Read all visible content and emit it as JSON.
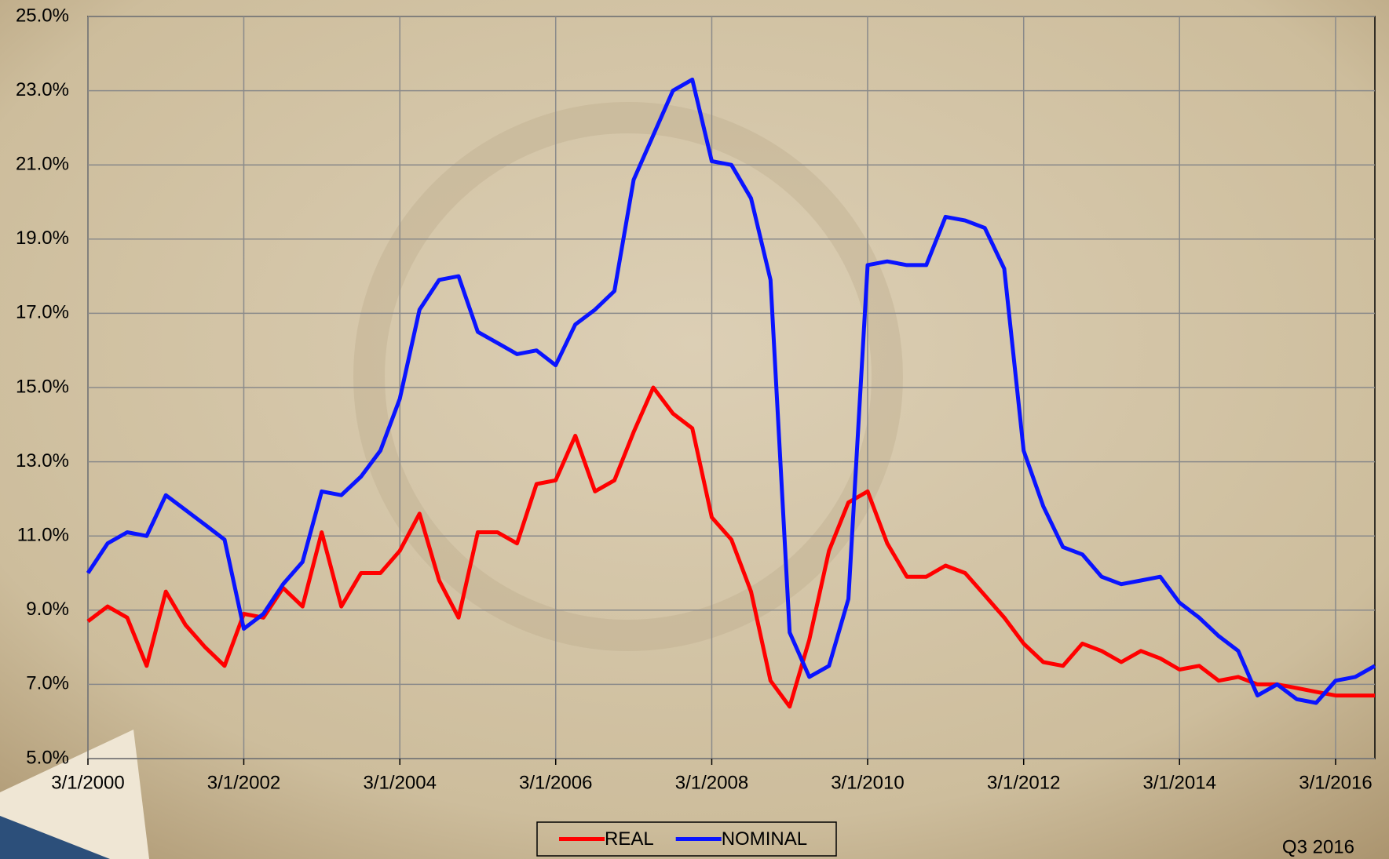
{
  "chart_data": {
    "type": "line",
    "x": [
      "3/1/2000",
      "6/1/2000",
      "9/1/2000",
      "12/1/2000",
      "3/1/2001",
      "6/1/2001",
      "9/1/2001",
      "12/1/2001",
      "3/1/2002",
      "6/1/2002",
      "9/1/2002",
      "12/1/2002",
      "3/1/2003",
      "6/1/2003",
      "9/1/2003",
      "12/1/2003",
      "3/1/2004",
      "6/1/2004",
      "9/1/2004",
      "12/1/2004",
      "3/1/2005",
      "6/1/2005",
      "9/1/2005",
      "12/1/2005",
      "3/1/2006",
      "6/1/2006",
      "9/1/2006",
      "12/1/2006",
      "3/1/2007",
      "6/1/2007",
      "9/1/2007",
      "12/1/2007",
      "3/1/2008",
      "6/1/2008",
      "9/1/2008",
      "12/1/2008",
      "3/1/2009",
      "6/1/2009",
      "9/1/2009",
      "12/1/2009",
      "3/1/2010",
      "6/1/2010",
      "9/1/2010",
      "12/1/2010",
      "3/1/2011",
      "6/1/2011",
      "9/1/2011",
      "12/1/2011",
      "3/1/2012",
      "6/1/2012",
      "9/1/2012",
      "12/1/2012",
      "3/1/2013",
      "6/1/2013",
      "9/1/2013",
      "12/1/2013",
      "3/1/2014",
      "6/1/2014",
      "9/1/2014",
      "12/1/2014",
      "3/1/2015",
      "6/1/2015",
      "9/1/2015",
      "12/1/2015",
      "3/1/2016",
      "6/1/2016",
      "9/1/2016"
    ],
    "series": [
      {
        "name": "REAL",
        "color": "#ff0000",
        "values": [
          8.7,
          9.1,
          8.8,
          7.5,
          9.5,
          8.6,
          8.0,
          7.5,
          8.9,
          8.8,
          9.6,
          9.1,
          11.1,
          9.1,
          10.0,
          10.0,
          10.6,
          11.6,
          9.8,
          8.8,
          11.1,
          11.1,
          10.8,
          12.4,
          12.5,
          13.7,
          12.2,
          12.5,
          13.8,
          15.0,
          14.3,
          13.9,
          11.5,
          10.9,
          9.5,
          7.1,
          6.4,
          8.2,
          10.6,
          11.9,
          12.2,
          10.8,
          9.9,
          9.9,
          10.2,
          10.0,
          9.4,
          8.8,
          8.1,
          7.6,
          7.5,
          8.1,
          7.9,
          7.6,
          7.9,
          7.7,
          7.4,
          7.5,
          7.1,
          7.2,
          7.0,
          7.0,
          6.9,
          6.8,
          6.7,
          6.7,
          6.7
        ]
      },
      {
        "name": "NOMINAL",
        "color": "#0a14ff",
        "values": [
          10.0,
          10.8,
          11.1,
          11.0,
          12.1,
          11.7,
          11.3,
          10.9,
          8.5,
          8.9,
          9.7,
          10.3,
          12.2,
          12.1,
          12.6,
          13.3,
          14.7,
          17.1,
          17.9,
          18.0,
          16.5,
          16.2,
          15.9,
          16.0,
          15.6,
          16.7,
          17.1,
          17.6,
          20.6,
          21.8,
          23.0,
          23.3,
          21.1,
          21.0,
          20.1,
          17.9,
          8.4,
          7.2,
          7.5,
          9.3,
          18.3,
          18.4,
          18.3,
          18.3,
          19.6,
          19.5,
          19.3,
          18.2,
          13.3,
          11.8,
          10.7,
          10.5,
          9.9,
          9.7,
          9.8,
          9.9,
          9.2,
          8.8,
          8.3,
          7.9,
          6.7,
          7.0,
          6.6,
          6.5,
          7.1,
          7.2,
          7.5
        ]
      }
    ],
    "xlim": [
      "3/1/2000",
      "9/1/2016"
    ],
    "xticks": [
      "3/1/2000",
      "3/1/2002",
      "3/1/2004",
      "3/1/2006",
      "3/1/2008",
      "3/1/2010",
      "3/1/2012",
      "3/1/2014",
      "3/1/2016"
    ],
    "ylim": [
      5,
      25
    ],
    "yticks": [
      {
        "value": 5,
        "label": "5.0%"
      },
      {
        "value": 7,
        "label": "7.0%"
      },
      {
        "value": 9,
        "label": "9.0%"
      },
      {
        "value": 11,
        "label": "11.0%"
      },
      {
        "value": 13,
        "label": "13.0%"
      },
      {
        "value": 15,
        "label": "15.0%"
      },
      {
        "value": 17,
        "label": "17.0%"
      },
      {
        "value": 19,
        "label": "19.0%"
      },
      {
        "value": 21,
        "label": "21.0%"
      },
      {
        "value": 23,
        "label": "23.0%"
      },
      {
        "value": 25,
        "label": "25.0%"
      }
    ],
    "grid": true,
    "legend": "bottom",
    "annotation": "Q3 2016"
  }
}
